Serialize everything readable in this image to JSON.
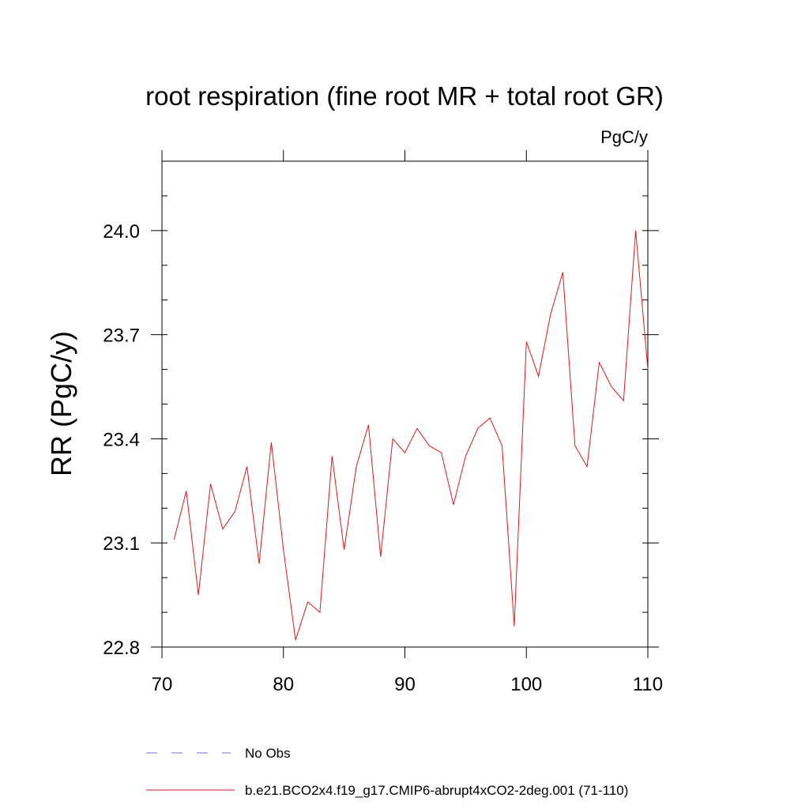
{
  "chart_data": {
    "type": "line",
    "title": "root respiration (fine root MR + total root GR)",
    "units": "PgC/y",
    "ylabel": "RR  (PgC/y)",
    "xlabel": "",
    "xlim": [
      70,
      110
    ],
    "ylim": [
      22.8,
      24.2
    ],
    "x_ticks": [
      70,
      80,
      90,
      100,
      110
    ],
    "x_tick_labels": [
      "70",
      "80",
      "90",
      "100",
      "110"
    ],
    "y_ticks": [
      22.8,
      23.1,
      23.4,
      23.7,
      24.0
    ],
    "y_tick_labels": [
      "22.8",
      "23.1",
      "23.4",
      "23.7",
      "24.0"
    ],
    "grid": false,
    "legend_position": "bottom",
    "legend": [
      {
        "name": "No Obs",
        "style": "dashed",
        "color": "#7b6fd0"
      },
      {
        "name": "b.e21.BCO2x4.f19_g17.CMIP6-abrupt4xCO2-2deg.001 (71-110)",
        "style": "solid",
        "color": "#e8141b"
      }
    ],
    "series": [
      {
        "name": "b.e21.BCO2x4.f19_g17.CMIP6-abrupt4xCO2-2deg.001 (71-110)",
        "color": "#e8141b",
        "x": [
          71,
          72,
          73,
          74,
          75,
          76,
          77,
          78,
          79,
          80,
          81,
          82,
          83,
          84,
          85,
          86,
          87,
          88,
          89,
          90,
          91,
          92,
          93,
          94,
          95,
          96,
          97,
          98,
          99,
          100,
          101,
          102,
          103,
          104,
          105,
          106,
          107,
          108,
          109,
          110
        ],
        "values": [
          23.11,
          23.25,
          22.95,
          23.27,
          23.14,
          23.19,
          23.32,
          23.04,
          23.39,
          23.08,
          22.82,
          22.93,
          22.9,
          23.35,
          23.08,
          23.32,
          23.44,
          23.06,
          23.4,
          23.36,
          23.43,
          23.38,
          23.36,
          23.21,
          23.35,
          23.43,
          23.46,
          23.38,
          22.86,
          23.68,
          23.58,
          23.76,
          23.88,
          23.38,
          23.32,
          23.62,
          23.55,
          23.51,
          24.0,
          23.6
        ]
      }
    ]
  }
}
